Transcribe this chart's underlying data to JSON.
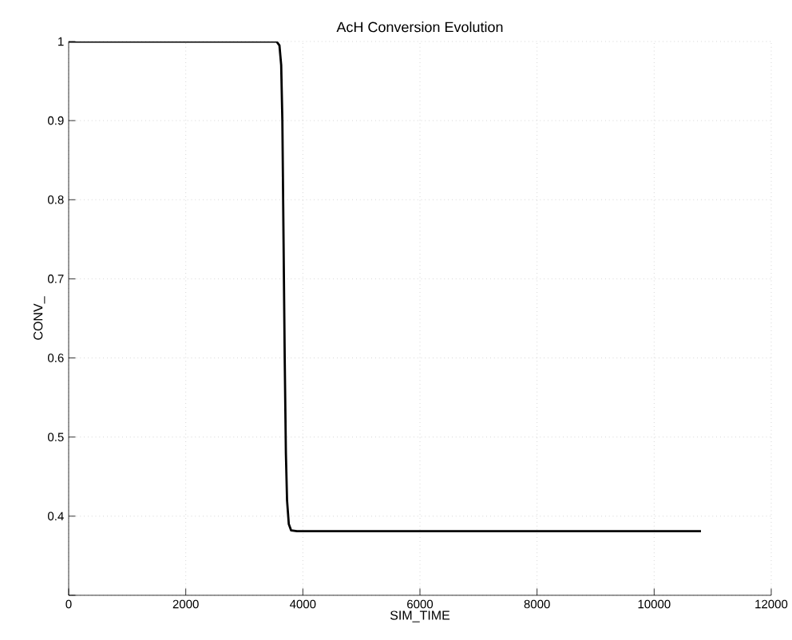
{
  "chart_data": {
    "type": "line",
    "title": "AcH Conversion Evolution",
    "xlabel": "SIM_TIME",
    "ylabel": "CONV_",
    "x": [
      0,
      3550,
      3600,
      3630,
      3650,
      3670,
      3690,
      3710,
      3730,
      3760,
      3800,
      3900,
      10800
    ],
    "series": [
      {
        "color": "#000000",
        "values": [
          1,
          1,
          0.995,
          0.97,
          0.9,
          0.75,
          0.6,
          0.48,
          0.42,
          0.39,
          0.382,
          0.381,
          0.381
        ]
      }
    ],
    "xlim": [
      0,
      12000
    ],
    "ylim": [
      0.3,
      1
    ],
    "xticks": [
      0,
      2000,
      4000,
      6000,
      8000,
      10000,
      12000
    ],
    "yticks": [
      {
        "value": 0.3,
        "label": null
      },
      0.4,
      0.5,
      0.6,
      0.7,
      0.8,
      0.9,
      1
    ],
    "grid": true,
    "marker": "none",
    "line_style": "solid"
  }
}
